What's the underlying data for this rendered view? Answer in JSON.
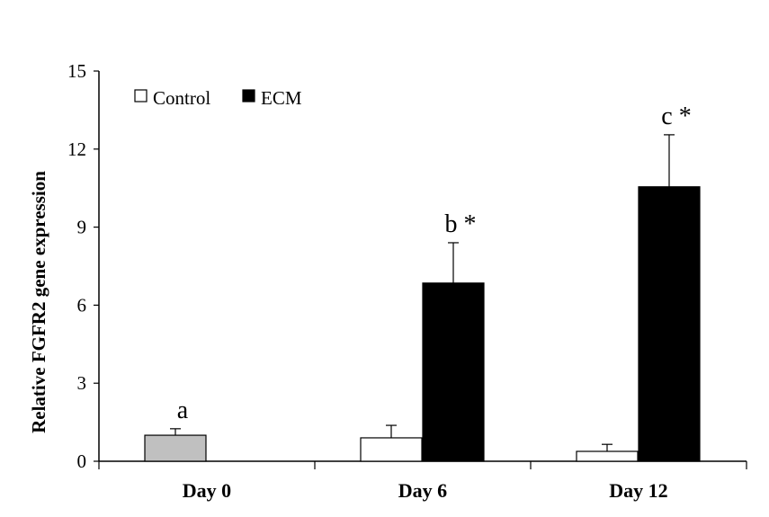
{
  "chart_data": {
    "type": "bar",
    "title": "",
    "xlabel": "",
    "ylabel": "Relative FGFR2 gene expression",
    "ylim": [
      0,
      15
    ],
    "yticks": [
      "0",
      "3",
      "6",
      "9",
      "12",
      "15"
    ],
    "categories": [
      "Day 0",
      "Day 6",
      "Day 12"
    ],
    "series": [
      {
        "name": "Control",
        "values": [
          1.0,
          0.9,
          0.38
        ],
        "errors": [
          0.25,
          0.48,
          0.27
        ],
        "colors": [
          "#c0c0c0",
          "#ffffff",
          "#ffffff"
        ]
      },
      {
        "name": "ECM",
        "values": [
          null,
          6.85,
          10.55
        ],
        "errors": [
          null,
          1.55,
          2.0
        ],
        "colors": [
          "#000000",
          "#000000",
          "#000000"
        ]
      }
    ],
    "annotations": [
      {
        "category": "Day 0",
        "series": "Control",
        "text": "a"
      },
      {
        "category": "Day 6",
        "series": "ECM",
        "text": "b *"
      },
      {
        "category": "Day 12",
        "series": "ECM",
        "text": "c *"
      }
    ],
    "legend": {
      "placement": "top-left",
      "entries": [
        "Control",
        "ECM"
      ]
    },
    "grid": false
  }
}
